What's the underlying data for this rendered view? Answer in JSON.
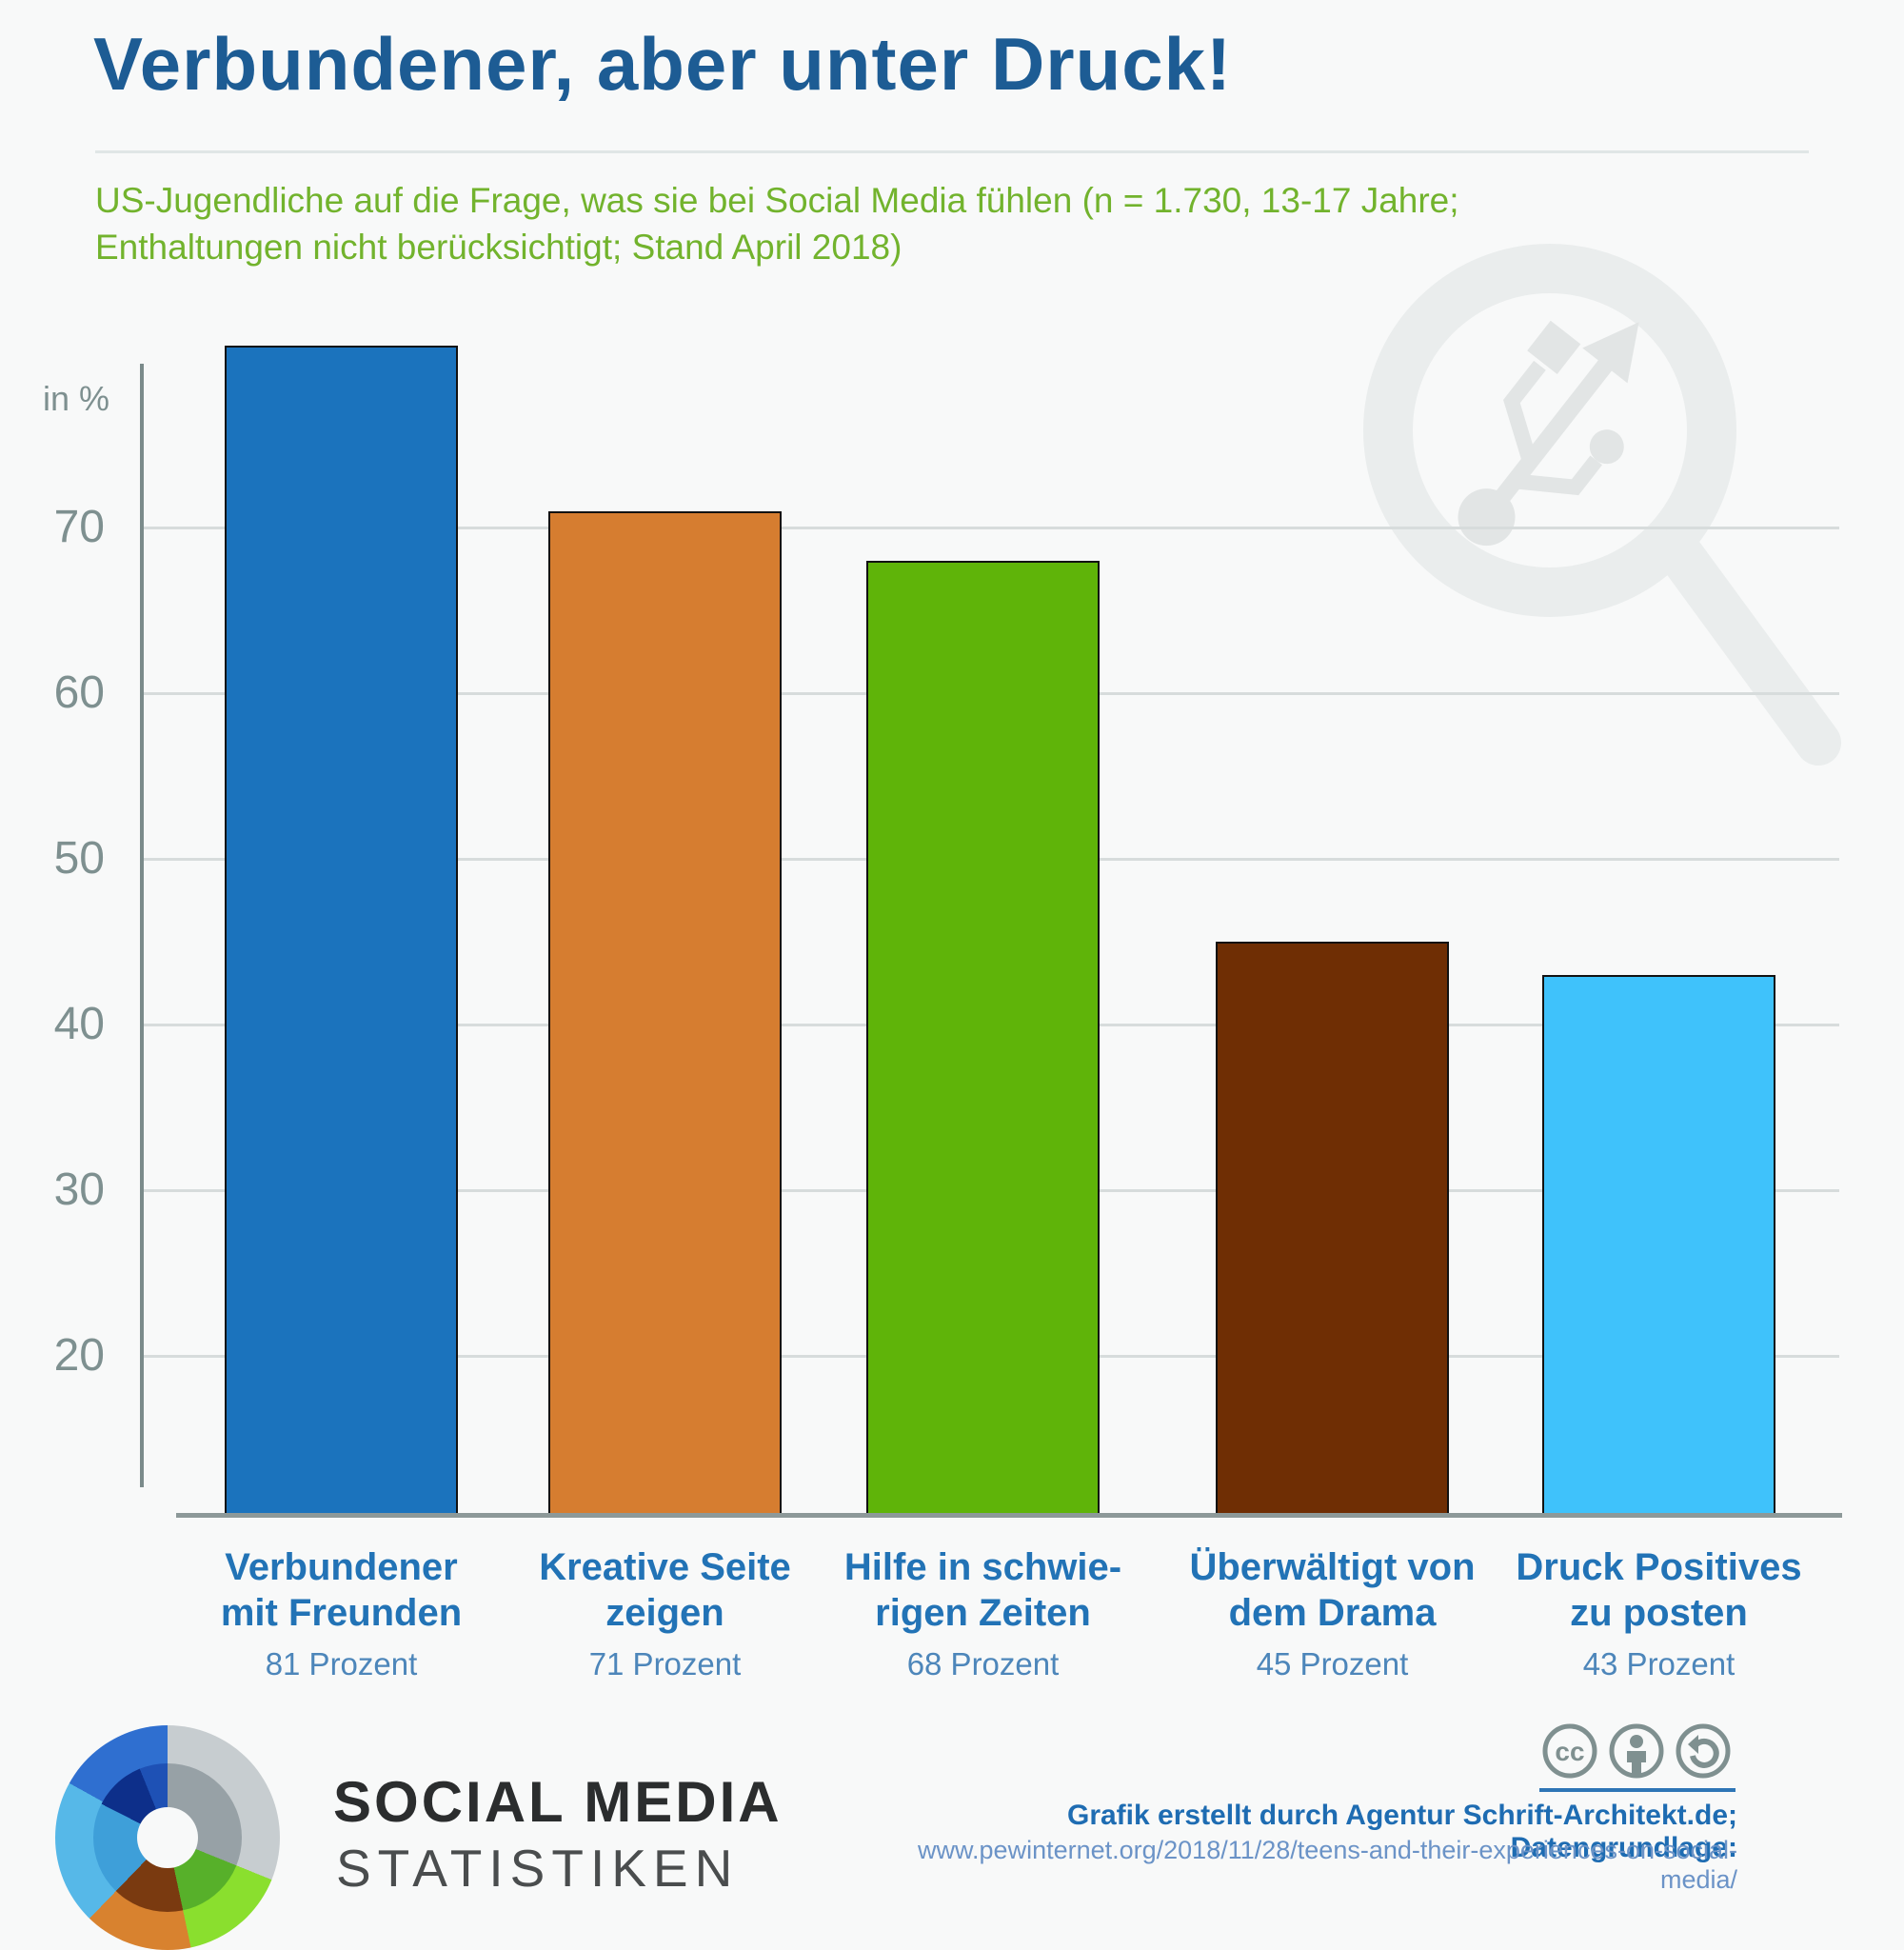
{
  "title": "Verbundener, aber unter Druck!",
  "subtitle": "US-Jugendliche auf die Frage, was sie bei Social Media fühlen (n = 1.730, 13-17 Jahre; Enthaltungen nicht berücksichtigt; Stand April 2018)",
  "chart_data": {
    "type": "bar",
    "title": "Verbundener, aber unter Druck!",
    "unit_label": "in %",
    "categories": [
      [
        "Verbundener",
        "mit Freunden"
      ],
      [
        "Kreative Seite",
        "zeigen"
      ],
      [
        "Hilfe in schwie-",
        "rigen Zeiten"
      ],
      [
        "Überwältigt von",
        "dem Drama"
      ],
      [
        "Druck Positives",
        "zu posten"
      ]
    ],
    "values": [
      81,
      71,
      68,
      45,
      43
    ],
    "value_labels": [
      "81 Prozent",
      "71 Prozent",
      "68 Prozent",
      "45 Prozent",
      "43 Prozent"
    ],
    "bar_colors": [
      "#1b73bd",
      "#d67d30",
      "#5fb409",
      "#6f2e04",
      "#3fc2fb"
    ],
    "yticks": [
      20,
      30,
      40,
      50,
      60,
      70
    ],
    "ylim": [
      10.4,
      83
    ],
    "grid": true,
    "legend": "none",
    "accent_colors": {
      "title": "#1d5c94",
      "subtitle_green": "#72b32d",
      "axis_gray": "#7e9090",
      "label_blue": "#2273b6"
    }
  },
  "watermark": {
    "icon": "usb-magnifier-watermark"
  },
  "footer": {
    "wordmark_line1": "SOCIAL MEDIA",
    "wordmark_line2": "STATISTIKEN",
    "license_icons": [
      "cc-icon",
      "attribution-person-icon",
      "share-alike-icon"
    ],
    "credit_bold": "Grafik erstellt durch Agentur Schrift-Architekt.de; Datengrundlage:",
    "credit_url": "www.pewinternet.org/2018/11/28/teens-and-their-experiences-on-social-media/"
  }
}
